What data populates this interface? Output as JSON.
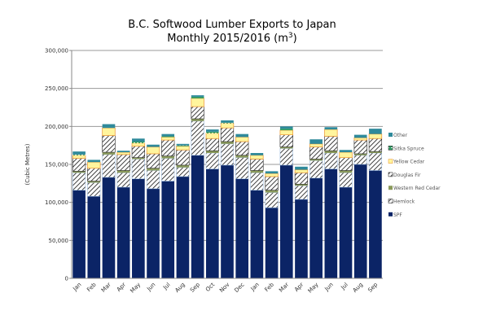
{
  "chart_data": {
    "type": "bar",
    "stacked": true,
    "title_line1": "B.C. Softwood Lumber Exports to Japan",
    "title_line2": "Monthly 2015/2016 (m",
    "title_sup": "3",
    "title_end": ")",
    "xlabel": "",
    "ylabel": "(Cubic Metres)",
    "ylim": [
      0,
      300000
    ],
    "yticks": [
      0,
      50000,
      100000,
      150000,
      200000,
      250000,
      300000
    ],
    "ytick_labels": [
      "0",
      "50,000",
      "100,000",
      "150,000",
      "200,000",
      "250,000",
      "300,000"
    ],
    "grid": true,
    "legend_position": "right",
    "categories": [
      "Jan",
      "Feb",
      "Mar",
      "Apr",
      "May",
      "Jun",
      "Jul",
      "Aug",
      "Sep",
      "Oct",
      "Nov",
      "Dec",
      "Jan",
      "Feb",
      "Mar",
      "Apr",
      "May",
      "Jun",
      "Jul",
      "Aug",
      "Sep"
    ],
    "series": [
      {
        "name": "SPF",
        "color": "#0b2466",
        "pattern": "solid",
        "values": [
          116000,
          108000,
          133000,
          120000,
          131000,
          118000,
          128000,
          134000,
          162000,
          144000,
          149000,
          131000,
          116000,
          93000,
          149000,
          104000,
          132000,
          144000,
          120000,
          150000,
          142000
        ]
      },
      {
        "name": "Hemlock",
        "color": "#9bbbe0",
        "pattern": "hatch",
        "values": [
          23000,
          18000,
          30000,
          19000,
          26000,
          24000,
          30000,
          12000,
          45000,
          21000,
          28000,
          28000,
          23000,
          20000,
          22000,
          18000,
          23000,
          21000,
          19000,
          12000,
          23000
        ]
      },
      {
        "name": "Western Red Cedar",
        "color": "#8a9a5b",
        "pattern": "solid",
        "values": [
          2000,
          2000,
          3000,
          3000,
          2000,
          3000,
          3000,
          3000,
          3000,
          3000,
          3000,
          3000,
          3000,
          3000,
          2000,
          2000,
          2000,
          3000,
          3000,
          2000,
          2000
        ]
      },
      {
        "name": "Douglas Fir",
        "color": "#222222",
        "pattern": "hatch",
        "values": [
          17000,
          17000,
          22000,
          21000,
          15000,
          19000,
          21000,
          20000,
          16000,
          16000,
          18000,
          18000,
          15000,
          18000,
          16000,
          15000,
          16000,
          19000,
          17000,
          18000,
          17000
        ]
      },
      {
        "name": "Yellow Cedar",
        "color": "#fff59d",
        "pattern": "solid",
        "values": [
          4000,
          8000,
          10000,
          3000,
          4000,
          9000,
          4000,
          5000,
          11000,
          7000,
          6000,
          6000,
          5000,
          4000,
          6000,
          4000,
          4000,
          9000,
          7000,
          3000,
          6000
        ]
      },
      {
        "name": "Sitka Spruce",
        "color": "#2e9b62",
        "pattern": "dash",
        "values": [
          1000,
          0,
          0,
          0,
          2000,
          0,
          1000,
          1000,
          2000,
          2000,
          1000,
          0,
          0,
          0,
          2000,
          0,
          0,
          0,
          0,
          0,
          0
        ]
      },
      {
        "name": "Other",
        "color": "#2f8a9b",
        "pattern": "solid",
        "values": [
          4000,
          3000,
          5000,
          2000,
          4000,
          3000,
          3000,
          2000,
          2000,
          3000,
          3000,
          4000,
          3000,
          3000,
          3000,
          4000,
          6000,
          3000,
          3000,
          4000,
          7000
        ]
      }
    ]
  }
}
